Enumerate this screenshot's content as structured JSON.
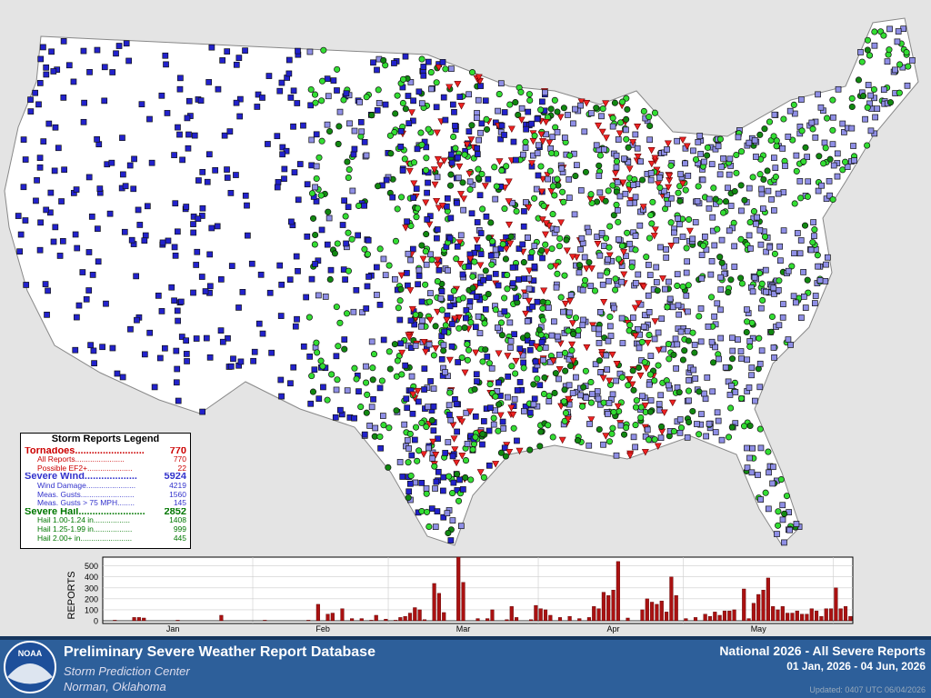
{
  "legend": {
    "title": "Storm Reports Legend",
    "sections": [
      {
        "label": "Tornadoes.........................",
        "total": 770,
        "color": "#cc0000",
        "rows": [
          {
            "label": "All Reports.......................",
            "value": 770
          },
          {
            "label": "Possible EF2+.....................",
            "value": 22
          }
        ]
      },
      {
        "label": "Severe Wind...................",
        "total": 5924,
        "color": "#3333cc",
        "rows": [
          {
            "label": "Wind Damage.......................",
            "value": 4219
          },
          {
            "label": "Meas. Gusts.........................",
            "value": 1560
          },
          {
            "label": "Meas. Gusts > 75 MPH........",
            "value": 145
          }
        ]
      },
      {
        "label": "Severe Hail........................",
        "total": 2852,
        "color": "#007700",
        "rows": [
          {
            "label": "Hail 1.00-1.24 in.................",
            "value": 1408
          },
          {
            "label": "Hail 1.25-1.99 in..................",
            "value": 999
          },
          {
            "label": "Hail 2.00+ in........................",
            "value": 445
          }
        ]
      }
    ]
  },
  "chart_data": {
    "type": "bar",
    "y_label": "REPORTS",
    "color": "#aa1111",
    "categories": [
      null,
      null,
      null,
      null,
      null,
      null,
      null,
      null,
      null,
      null,
      null,
      null,
      null,
      null,
      "Jan",
      null,
      null,
      null,
      null,
      null,
      null,
      null,
      null,
      null,
      null,
      null,
      null,
      null,
      null,
      null,
      null,
      null,
      null,
      null,
      null,
      null,
      null,
      null,
      null,
      null,
      null,
      null,
      null,
      null,
      null,
      "Feb",
      null,
      null,
      null,
      null,
      null,
      null,
      null,
      null,
      null,
      null,
      null,
      null,
      null,
      null,
      null,
      null,
      null,
      null,
      null,
      null,
      null,
      null,
      null,
      null,
      null,
      null,
      null,
      null,
      "Mar",
      null,
      null,
      null,
      null,
      null,
      null,
      null,
      null,
      null,
      null,
      null,
      null,
      null,
      null,
      null,
      null,
      null,
      null,
      null,
      null,
      null,
      null,
      null,
      null,
      null,
      null,
      null,
      null,
      null,
      null,
      "Apr",
      null,
      null,
      null,
      null,
      null,
      null,
      null,
      null,
      null,
      null,
      null,
      null,
      null,
      null,
      null,
      null,
      null,
      null,
      null,
      null,
      null,
      null,
      null,
      null,
      null,
      null,
      null,
      null,
      null,
      "May",
      null,
      null,
      null,
      null,
      null,
      null,
      null,
      null,
      null,
      null,
      null,
      null,
      null,
      null,
      null,
      null,
      null,
      null,
      null
    ],
    "values": [
      0,
      0,
      5,
      0,
      0,
      0,
      30,
      30,
      25,
      0,
      0,
      0,
      0,
      0,
      0,
      5,
      0,
      0,
      0,
      0,
      0,
      0,
      0,
      0,
      50,
      0,
      0,
      0,
      0,
      0,
      0,
      0,
      0,
      5,
      0,
      0,
      0,
      0,
      0,
      0,
      0,
      0,
      5,
      0,
      150,
      0,
      60,
      70,
      0,
      110,
      0,
      20,
      0,
      20,
      0,
      5,
      50,
      0,
      15,
      0,
      5,
      30,
      40,
      70,
      120,
      100,
      10,
      0,
      340,
      250,
      75,
      0,
      0,
      580,
      350,
      0,
      0,
      20,
      0,
      20,
      100,
      0,
      0,
      10,
      130,
      30,
      0,
      0,
      10,
      140,
      110,
      100,
      50,
      0,
      30,
      0,
      40,
      0,
      20,
      0,
      30,
      130,
      110,
      260,
      230,
      280,
      540,
      0,
      25,
      0,
      0,
      100,
      200,
      170,
      150,
      180,
      80,
      400,
      230,
      0,
      20,
      0,
      30,
      0,
      60,
      40,
      80,
      50,
      90,
      90,
      100,
      0,
      290,
      20,
      160,
      240,
      280,
      390,
      130,
      100,
      130,
      70,
      70,
      90,
      60,
      60,
      110,
      90,
      40,
      110,
      110,
      300,
      110,
      130,
      40
    ],
    "ylim": [
      0,
      580
    ],
    "yticks": [
      0,
      100,
      200,
      300,
      400,
      500
    ],
    "grid": true
  },
  "footer": {
    "logo": "NOAA",
    "title": "Preliminary Severe Weather Report Database",
    "org": "Storm Prediction Center",
    "place": "Norman, Oklahoma",
    "report": "National  2026 - All Severe Reports",
    "range": "01 Jan, 2026 - 04 Jun, 2026",
    "updated": "Updated: 0407 UTC 06/04/2026"
  }
}
